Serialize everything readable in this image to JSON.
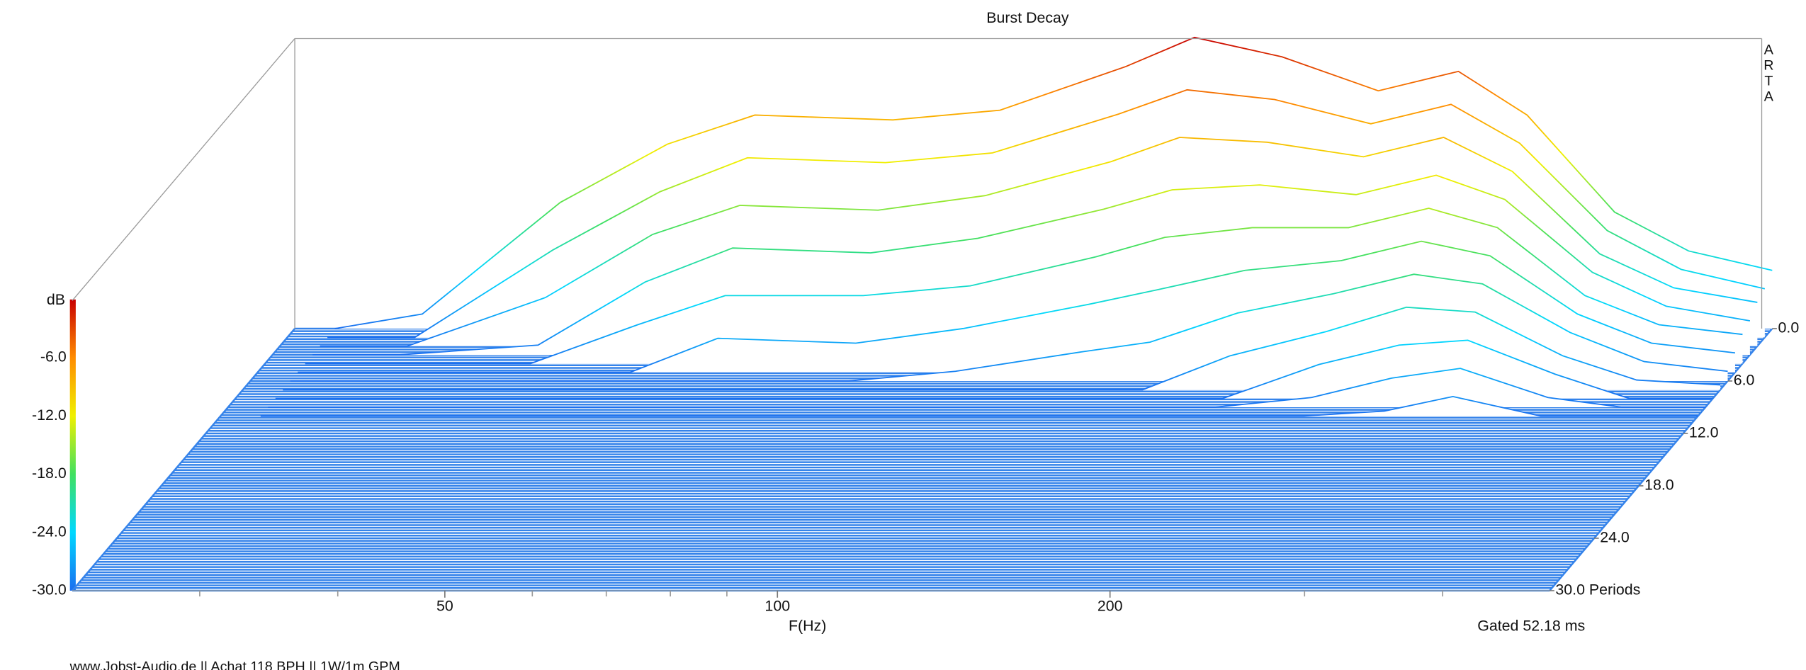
{
  "chart_data": {
    "type": "waterfall",
    "title": "Burst Decay",
    "x_label": "F(Hz)",
    "z_label": "dB",
    "gate_label": "Gated 52.18 ms",
    "footer": "www.Jobst-Audio.de  ||  Achat 118 BPH  ||  1W/1m GPM",
    "watermark": "ARTA",
    "xscale": "log",
    "xlim": [
      23,
      500
    ],
    "xticks": [
      50,
      100,
      200
    ],
    "x_minor_ticks": [
      30,
      40,
      60,
      70,
      80,
      90,
      300,
      400
    ],
    "ylim": [
      0,
      30
    ],
    "yticks": [
      {
        "value": 0,
        "label": "0.0"
      },
      {
        "value": 6,
        "label": "6.0"
      },
      {
        "value": 12,
        "label": "12.0"
      },
      {
        "value": 18,
        "label": "18.0"
      },
      {
        "value": 24,
        "label": "24.0"
      },
      {
        "value": 30,
        "label": "30.0 Periods"
      }
    ],
    "zlim": [
      -30,
      0
    ],
    "zticks": [
      {
        "value": -30,
        "label": "-30.0"
      },
      {
        "value": -24,
        "label": "-24.0"
      },
      {
        "value": -18,
        "label": "-18.0"
      },
      {
        "value": -12,
        "label": "-12.0"
      },
      {
        "value": -6,
        "label": "-6.0"
      }
    ],
    "colormap": [
      "#1a6ef0",
      "#00d8ff",
      "#40e060",
      "#f0f000",
      "#ff8c00",
      "#c80000"
    ],
    "floor_color": "#3583ea",
    "frequencies": [
      25,
      30,
      40,
      50,
      60,
      80,
      100,
      130,
      150,
      180,
      220,
      260,
      300,
      360,
      420,
      500
    ],
    "slices": [
      {
        "period": 0,
        "values": [
          -30,
          -28.5,
          -17,
          -11,
          -8,
          -8.5,
          -7.5,
          -3,
          0,
          -2,
          -5.5,
          -3.5,
          -8,
          -18,
          -22,
          -24
        ]
      },
      {
        "period": 1,
        "values": [
          -30,
          -30,
          -21,
          -15,
          -11.5,
          -12,
          -11,
          -7,
          -4.5,
          -5.5,
          -8,
          -6,
          -10,
          -19,
          -23,
          -25
        ]
      },
      {
        "period": 2,
        "values": [
          -30,
          -30,
          -25,
          -18.5,
          -15.5,
          -16,
          -14.5,
          -11,
          -8.5,
          -9,
          -10.5,
          -8.5,
          -12,
          -20.5,
          -24,
          -25.5
        ]
      },
      {
        "period": 3,
        "values": [
          -30,
          -30,
          -29,
          -22.5,
          -19,
          -19.5,
          -18,
          -15,
          -13,
          -12.5,
          -13.5,
          -11.5,
          -14,
          -21.5,
          -25,
          -26.5
        ]
      },
      {
        "period": 4,
        "values": [
          -30,
          -30,
          -30,
          -26,
          -23,
          -23,
          -22,
          -19,
          -17,
          -16,
          -16,
          -14,
          -16,
          -23,
          -26,
          -27
        ]
      },
      {
        "period": 5,
        "values": [
          -30,
          -30,
          -30,
          -30,
          -26.5,
          -27,
          -25.5,
          -23,
          -21.5,
          -19.5,
          -18.5,
          -16.5,
          -18,
          -24,
          -27,
          -28
        ]
      },
      {
        "period": 6,
        "values": [
          -30,
          -30,
          -30,
          -30,
          -30,
          -30,
          -29,
          -27,
          -26,
          -23,
          -21,
          -19,
          -20,
          -25,
          -28,
          -29
        ]
      },
      {
        "period": 7,
        "values": [
          -30,
          -30,
          -30,
          -30,
          -30,
          -30,
          -30,
          -30,
          -30,
          -26.5,
          -24,
          -21.5,
          -22,
          -26.5,
          -29,
          -29.5
        ]
      },
      {
        "period": 8,
        "values": [
          -30,
          -30,
          -30,
          -30,
          -30,
          -30,
          -30,
          -30,
          -30,
          -30,
          -26.5,
          -24.5,
          -24,
          -27.5,
          -30,
          -30
        ]
      },
      {
        "period": 9,
        "values": [
          -30,
          -30,
          -30,
          -30,
          -30,
          -30,
          -30,
          -30,
          -30,
          -30,
          -29,
          -27,
          -26,
          -29,
          -30,
          -30
        ]
      },
      {
        "period": 10,
        "values": [
          -30,
          -30,
          -30,
          -30,
          -30,
          -30,
          -30,
          -30,
          -30,
          -30,
          -30,
          -29.5,
          -28,
          -30,
          -30,
          -30
        ]
      }
    ]
  }
}
